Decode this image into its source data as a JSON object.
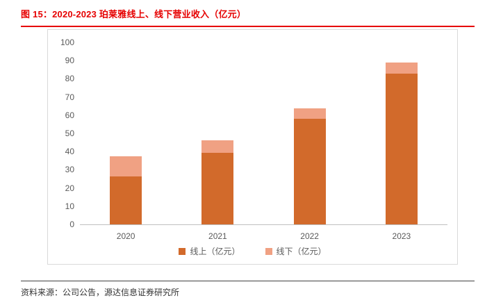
{
  "page": {
    "figure_label": "图 15：",
    "title": "2020-2023 珀莱雅线上、线下营业收入（亿元）",
    "source": "资料来源：公司公告，源达信息证券研究所",
    "accent_color": "#e60000"
  },
  "chart_data": {
    "type": "bar",
    "stacked": true,
    "title": "2020-2023 珀莱雅线上、线下营业收入（亿元）",
    "categories": [
      "2020",
      "2021",
      "2022",
      "2023"
    ],
    "series": [
      {
        "name": "线上（亿元）",
        "color": "#d26a2b",
        "values": [
          26.2,
          39.2,
          57.9,
          82.7
        ]
      },
      {
        "name": "线下（亿元）",
        "color": "#f0a183",
        "values": [
          11.3,
          7.1,
          5.9,
          6.3
        ]
      }
    ],
    "xlabel": "",
    "ylabel": "",
    "ylim": [
      0,
      100
    ],
    "y_ticks": [
      0,
      10,
      20,
      30,
      40,
      50,
      60,
      70,
      80,
      90,
      100
    ],
    "grid": false,
    "legend_position": "bottom"
  }
}
